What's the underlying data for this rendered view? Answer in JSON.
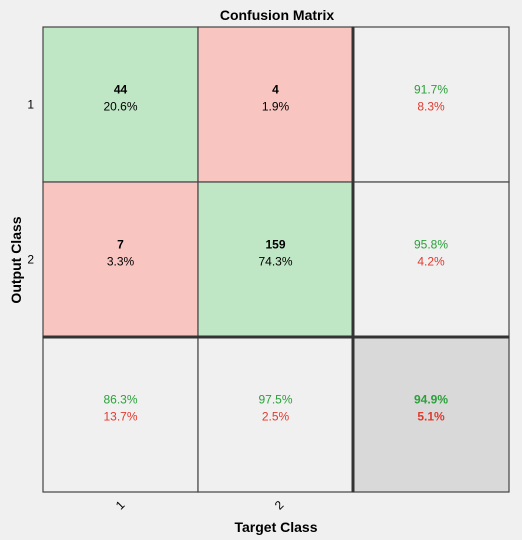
{
  "chart_data": {
    "type": "heatmap",
    "title": "Confusion Matrix",
    "xlabel": "Target Class",
    "ylabel": "Output Class",
    "x_ticks": [
      "1",
      "2"
    ],
    "y_ticks": [
      "1",
      "2"
    ],
    "cells": [
      [
        {
          "count": "44",
          "percent": "20.6%",
          "kind": "correct"
        },
        {
          "count": "4",
          "percent": "1.9%",
          "kind": "incorrect"
        }
      ],
      [
        {
          "count": "7",
          "percent": "3.3%",
          "kind": "incorrect"
        },
        {
          "count": "159",
          "percent": "74.3%",
          "kind": "correct"
        }
      ]
    ],
    "row_summary": [
      {
        "correct": "91.7%",
        "incorrect": "8.3%"
      },
      {
        "correct": "95.8%",
        "incorrect": "4.2%"
      }
    ],
    "col_summary": [
      {
        "correct": "86.3%",
        "incorrect": "13.7%"
      },
      {
        "correct": "97.5%",
        "incorrect": "2.5%"
      }
    ],
    "overall": {
      "correct": "94.9%",
      "incorrect": "5.1%"
    },
    "colors": {
      "correct_fill": "#bfe6c5",
      "incorrect_fill": "#f8c5c1",
      "summary_fill": "#f0f0f0",
      "overall_fill": "#d9d9d9",
      "green_text": "#2aa13a",
      "red_text": "#e03a2e",
      "background": "#f0f0f0"
    }
  }
}
